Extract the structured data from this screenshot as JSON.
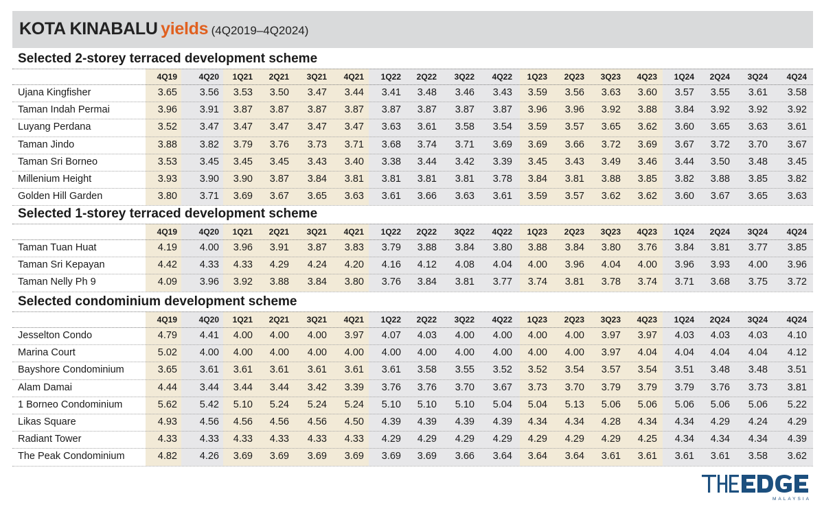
{
  "title": {
    "main": "KOTA KINABALU",
    "accent": "yields",
    "period": "(4Q2019–4Q2024)"
  },
  "brand": {
    "name": "THEEDGE",
    "sub": "MALAYSIA"
  },
  "colors": {
    "title_bar": "#d9dadb",
    "accent": "#e0601f",
    "band_warm": "#f2ead7",
    "band_grey": "#e7e7e9",
    "logo": "#1c4f7e"
  },
  "chart_data": {
    "type": "table",
    "columns": [
      "4Q19",
      "4Q20",
      "1Q21",
      "2Q21",
      "3Q21",
      "4Q21",
      "1Q22",
      "2Q22",
      "3Q22",
      "4Q22",
      "1Q23",
      "2Q23",
      "3Q23",
      "4Q23",
      "1Q24",
      "2Q24",
      "3Q24",
      "4Q24"
    ],
    "sections": [
      {
        "title": "Selected 2-storey terraced development scheme",
        "rows": [
          {
            "name": "Ujana Kingfisher",
            "values": [
              "3.65",
              "3.56",
              "3.53",
              "3.50",
              "3.47",
              "3.44",
              "3.41",
              "3.48",
              "3.46",
              "3.43",
              "3.59",
              "3.56",
              "3.63",
              "3.60",
              "3.57",
              "3.55",
              "3.61",
              "3.58"
            ]
          },
          {
            "name": "Taman Indah Permai",
            "values": [
              "3.96",
              "3.91",
              "3.87",
              "3.87",
              "3.87",
              "3.87",
              "3.87",
              "3.87",
              "3.87",
              "3.87",
              "3.96",
              "3.96",
              "3.92",
              "3.88",
              "3.84",
              "3.92",
              "3.92",
              "3.92"
            ]
          },
          {
            "name": "Luyang Perdana",
            "values": [
              "3.52",
              "3.47",
              "3.47",
              "3.47",
              "3.47",
              "3.47",
              "3.63",
              "3.61",
              "3.58",
              "3.54",
              "3.59",
              "3.57",
              "3.65",
              "3.62",
              "3.60",
              "3.65",
              "3.63",
              "3.61"
            ]
          },
          {
            "name": "Taman Jindo",
            "values": [
              "3.88",
              "3.82",
              "3.79",
              "3.76",
              "3.73",
              "3.71",
              "3.68",
              "3.74",
              "3.71",
              "3.69",
              "3.69",
              "3.66",
              "3.72",
              "3.69",
              "3.67",
              "3.72",
              "3.70",
              "3.67"
            ]
          },
          {
            "name": "Taman Sri Borneo",
            "values": [
              "3.53",
              "3.45",
              "3.45",
              "3.45",
              "3.43",
              "3.40",
              "3.38",
              "3.44",
              "3.42",
              "3.39",
              "3.45",
              "3.43",
              "3.49",
              "3.46",
              "3.44",
              "3.50",
              "3.48",
              "3.45"
            ]
          },
          {
            "name": "Millenium Height",
            "values": [
              "3.93",
              "3.90",
              "3.90",
              "3.87",
              "3.84",
              "3.81",
              "3.81",
              "3.81",
              "3.81",
              "3.78",
              "3.84",
              "3.81",
              "3.88",
              "3.85",
              "3.82",
              "3.88",
              "3.85",
              "3.82"
            ]
          },
          {
            "name": "Golden Hill Garden",
            "values": [
              "3.80",
              "3.71",
              "3.69",
              "3.67",
              "3.65",
              "3.63",
              "3.61",
              "3.66",
              "3.63",
              "3.61",
              "3.59",
              "3.57",
              "3.62",
              "3.62",
              "3.60",
              "3.67",
              "3.65",
              "3.63"
            ]
          }
        ]
      },
      {
        "title": "Selected 1-storey terraced development scheme",
        "rows": [
          {
            "name": "Taman Tuan Huat",
            "values": [
              "4.19",
              "4.00",
              "3.96",
              "3.91",
              "3.87",
              "3.83",
              "3.79",
              "3.88",
              "3.84",
              "3.80",
              "3.88",
              "3.84",
              "3.80",
              "3.76",
              "3.84",
              "3.81",
              "3.77",
              "3.85"
            ]
          },
          {
            "name": "Taman Sri Kepayan",
            "values": [
              "4.42",
              "4.33",
              "4.33",
              "4.29",
              "4.24",
              "4.20",
              "4.16",
              "4.12",
              "4.08",
              "4.04",
              "4.00",
              "3.96",
              "4.04",
              "4.00",
              "3.96",
              "3.93",
              "4.00",
              "3.96"
            ]
          },
          {
            "name": "Taman Nelly Ph 9",
            "values": [
              "4.09",
              "3.96",
              "3.92",
              "3.88",
              "3.84",
              "3.80",
              "3.76",
              "3.84",
              "3.81",
              "3.77",
              "3.74",
              "3.81",
              "3.78",
              "3.74",
              "3.71",
              "3.68",
              "3.75",
              "3.72"
            ]
          }
        ]
      },
      {
        "title": "Selected condominium development scheme",
        "rows": [
          {
            "name": "Jesselton Condo",
            "values": [
              "4.79",
              "4.41",
              "4.00",
              "4.00",
              "4.00",
              "3.97",
              "4.07",
              "4.03",
              "4.00",
              "4.00",
              "4.00",
              "4.00",
              "3.97",
              "3.97",
              "4.03",
              "4.03",
              "4.03",
              "4.10"
            ]
          },
          {
            "name": "Marina Court",
            "values": [
              "5.02",
              "4.00",
              "4.00",
              "4.00",
              "4.00",
              "4.00",
              "4.00",
              "4.00",
              "4.00",
              "4.00",
              "4.00",
              "4.00",
              "3.97",
              "4.04",
              "4.04",
              "4.04",
              "4.04",
              "4.12"
            ]
          },
          {
            "name": "Bayshore Condominium",
            "values": [
              "3.65",
              "3.61",
              "3.61",
              "3.61",
              "3.61",
              "3.61",
              "3.61",
              "3.58",
              "3.55",
              "3.52",
              "3.52",
              "3.54",
              "3.57",
              "3.54",
              "3.51",
              "3.48",
              "3.48",
              "3.51"
            ]
          },
          {
            "name": "Alam Damai",
            "values": [
              "4.44",
              "3.44",
              "3.44",
              "3.44",
              "3.42",
              "3.39",
              "3.76",
              "3.76",
              "3.70",
              "3.67",
              "3.73",
              "3.70",
              "3.79",
              "3.79",
              "3.79",
              "3.76",
              "3.73",
              "3.81"
            ]
          },
          {
            "name": "1 Borneo Condominium",
            "values": [
              "5.62",
              "5.42",
              "5.10",
              "5.24",
              "5.24",
              "5.24",
              "5.10",
              "5.10",
              "5.10",
              "5.04",
              "5.04",
              "5.13",
              "5.06",
              "5.06",
              "5.06",
              "5.06",
              "5.06",
              "5.22"
            ]
          },
          {
            "name": "Likas Square",
            "values": [
              "4.93",
              "4.56",
              "4.56",
              "4.56",
              "4.56",
              "4.50",
              "4.39",
              "4.39",
              "4.39",
              "4.39",
              "4.34",
              "4.34",
              "4.28",
              "4.34",
              "4.34",
              "4.29",
              "4.24",
              "4.29"
            ]
          },
          {
            "name": "Radiant Tower",
            "values": [
              "4.33",
              "4.33",
              "4.33",
              "4.33",
              "4.33",
              "4.33",
              "4.29",
              "4.29",
              "4.29",
              "4.29",
              "4.29",
              "4.29",
              "4.29",
              "4.25",
              "4.34",
              "4.34",
              "4.34",
              "4.39"
            ]
          },
          {
            "name": "The Peak Condominium",
            "values": [
              "4.82",
              "4.26",
              "3.69",
              "3.69",
              "3.69",
              "3.69",
              "3.69",
              "3.69",
              "3.66",
              "3.64",
              "3.64",
              "3.64",
              "3.61",
              "3.61",
              "3.61",
              "3.61",
              "3.58",
              "3.62"
            ]
          }
        ]
      }
    ]
  }
}
